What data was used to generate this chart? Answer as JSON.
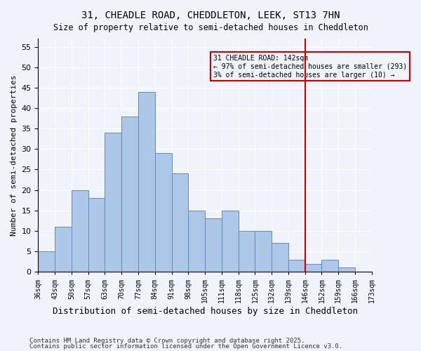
{
  "title1": "31, CHEADLE ROAD, CHEDDLETON, LEEK, ST13 7HN",
  "title2": "Size of property relative to semi-detached houses in Cheddleton",
  "xlabel": "Distribution of semi-detached houses by size in Cheddleton",
  "ylabel": "Number of semi-detached properties",
  "footnote1": "Contains HM Land Registry data © Crown copyright and database right 2025.",
  "footnote2": "Contains public sector information licensed under the Open Government Licence v3.0.",
  "bin_labels": [
    "36sqm",
    "43sqm",
    "50sqm",
    "57sqm",
    "63sqm",
    "70sqm",
    "77sqm",
    "84sqm",
    "91sqm",
    "98sqm",
    "105sqm",
    "111sqm",
    "118sqm",
    "125sqm",
    "132sqm",
    "139sqm",
    "146sqm",
    "152sqm",
    "159sqm",
    "166sqm",
    "173sqm"
  ],
  "bar_heights": [
    5,
    11,
    20,
    18,
    34,
    38,
    44,
    29,
    24,
    15,
    13,
    15,
    10,
    10,
    7,
    3,
    2,
    3,
    1,
    0
  ],
  "bar_color": "#aec6e8",
  "bar_edge_color": "#5a8fc2",
  "property_value": 142,
  "vline_color": "#cc0000",
  "annotation_title": "31 CHEADLE ROAD: 142sqm",
  "annotation_line1": "← 97% of semi-detached houses are smaller (293)",
  "annotation_line2": "3% of semi-detached houses are larger (10) →",
  "annotation_box_color": "#cc0000",
  "ylim": [
    0,
    57
  ],
  "yticks": [
    0,
    5,
    10,
    15,
    20,
    25,
    30,
    35,
    40,
    45,
    50,
    55
  ],
  "background_color": "#f0f4fa"
}
